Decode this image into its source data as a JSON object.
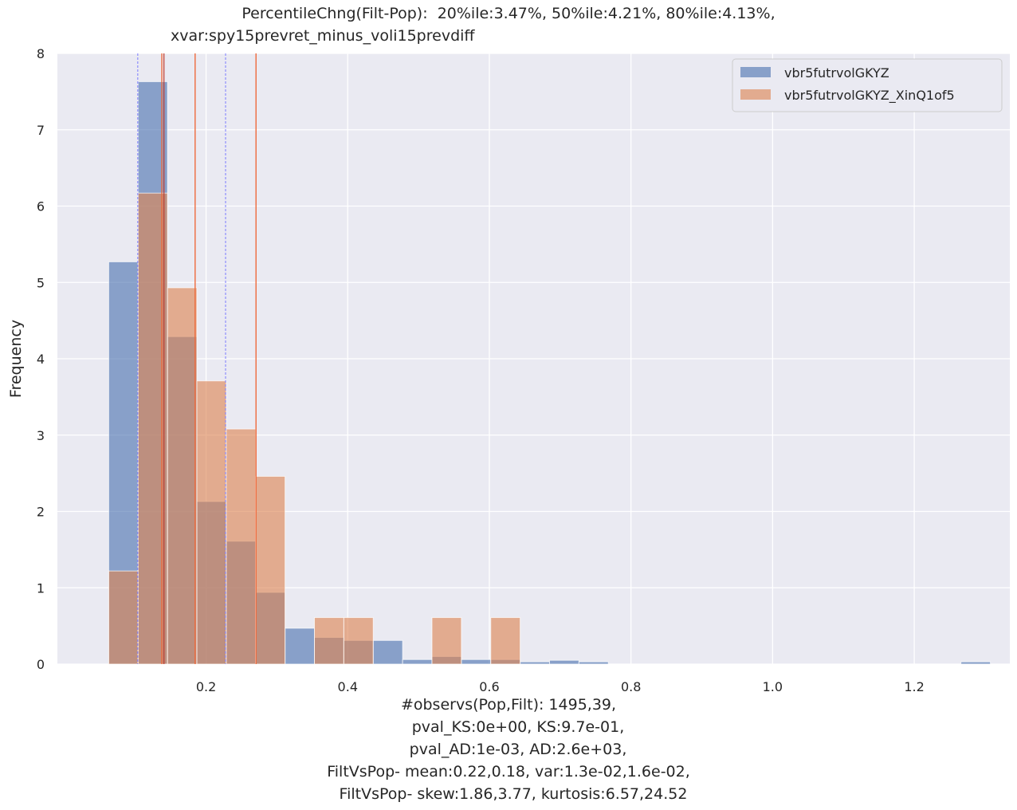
{
  "chart_data": {
    "type": "bar",
    "title_lines": [
      "PercentileChng(Filt-Pop):  20%ile:3.47%, 50%ile:4.21%, 80%ile:4.13%,",
      "xvar:spy15prevret_minus_voli15prevdiff"
    ],
    "xlabel_lines": [
      "#observs(Pop,Filt): 1495,39,",
      "pval_KS:0e+00, KS:9.7e-01,",
      "pval_AD:1e-03, AD:2.6e+03,",
      "FiltVsPop- mean:0.22,0.18, var:1.3e-02,1.6e-02,",
      "FiltVsPop- skew:1.86,3.77, kurtosis:6.57,24.52"
    ],
    "ylabel": "Frequency",
    "xlim": [
      -0.01,
      1.335
    ],
    "ylim": [
      0,
      8
    ],
    "xticks": [
      0.2,
      0.4,
      0.6,
      0.8,
      1.0,
      1.2
    ],
    "xtick_labels": [
      "0.2",
      "0.4",
      "0.6",
      "0.8",
      "1.0",
      "1.2"
    ],
    "yticks": [
      0,
      1,
      2,
      3,
      4,
      5,
      6,
      7,
      8
    ],
    "ytick_labels": [
      "0",
      "1",
      "2",
      "3",
      "4",
      "5",
      "6",
      "7",
      "8"
    ],
    "grid": true,
    "legend_position": "top-right",
    "bin_start": 0.0625,
    "bin_width": 0.0415,
    "series": [
      {
        "name": "vbr5futrvolGKYZ",
        "color": "#4c72b0",
        "values": [
          5.27,
          7.63,
          4.29,
          2.13,
          1.61,
          0.94,
          0.47,
          0.35,
          0.31,
          0.31,
          0.06,
          0.1,
          0.06,
          0.06,
          0.03,
          0.05,
          0.03,
          0,
          0,
          0,
          0,
          0,
          0,
          0,
          0,
          0,
          0,
          0,
          0,
          0.03
        ],
        "percentile_lines": [
          0.1035,
          0.2275
        ]
      },
      {
        "name": "vbr5futrvolGKYZ_XinQ1of5",
        "color": "#dd8452",
        "values": [
          1.22,
          6.17,
          4.93,
          3.71,
          3.08,
          2.46,
          0,
          0.61,
          0.61,
          0,
          0,
          0.61,
          0,
          0.61
        ],
        "percentile_lines": [
          0.1375,
          0.1845,
          0.2705
        ]
      }
    ],
    "extra_lines": [
      0.1405
    ]
  }
}
